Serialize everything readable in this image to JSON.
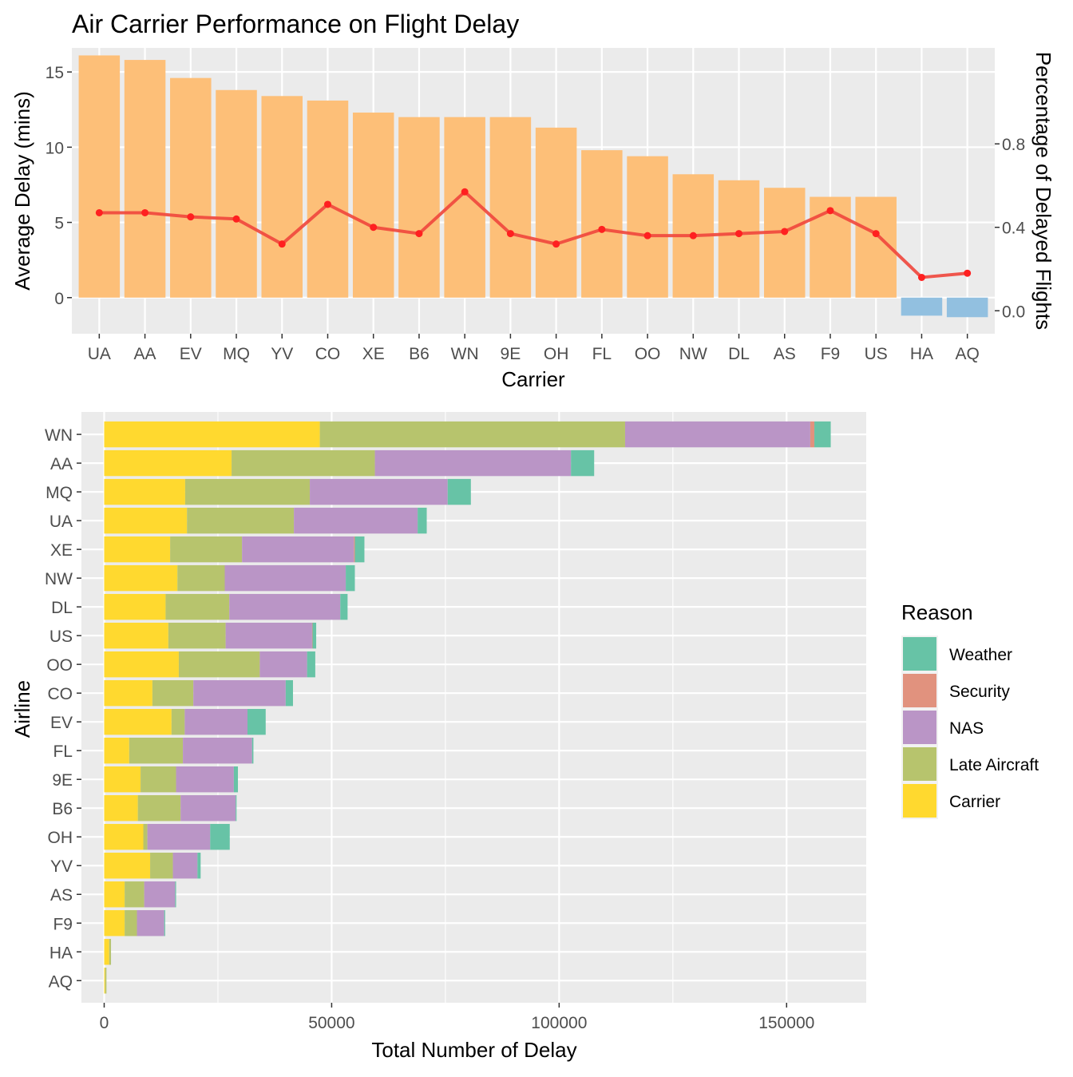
{
  "title": "Air Carrier Performance on Flight Delay",
  "colors": {
    "panel_bg": "#EBEBEB",
    "grid": "#FFFFFF",
    "bar_positive": "#FDBF78",
    "bar_negative": "#92C0E0",
    "line": "#F0463C",
    "point": "#FF2020",
    "axis_text": "#4D4D4D"
  },
  "chart_data": [
    {
      "type": "bar",
      "xlabel": "Carrier",
      "ylabel": "Average Delay (mins)",
      "y2label": "Percentage of Delayed Flights",
      "ylim": [
        -2.4,
        16.6
      ],
      "yticks": [
        0,
        5,
        10,
        15
      ],
      "y2lim": [
        -0.11,
        1.26
      ],
      "y2ticks": [
        0.0,
        0.4,
        0.8
      ],
      "y2ticklabels": [
        "0.0",
        "0.4",
        "0.8"
      ],
      "categories": [
        "UA",
        "AA",
        "EV",
        "MQ",
        "YV",
        "CO",
        "XE",
        "B6",
        "WN",
        "9E",
        "OH",
        "FL",
        "OO",
        "NW",
        "DL",
        "AS",
        "F9",
        "US",
        "HA",
        "AQ"
      ],
      "values": [
        16.1,
        15.8,
        14.6,
        13.8,
        13.4,
        13.1,
        12.3,
        12.0,
        12.0,
        12.0,
        11.3,
        9.8,
        9.4,
        8.2,
        7.8,
        7.3,
        6.7,
        6.7,
        -1.2,
        -1.3
      ],
      "line_series": {
        "axis": "secondary",
        "values": [
          0.47,
          0.47,
          0.45,
          0.44,
          0.32,
          0.51,
          0.4,
          0.37,
          0.57,
          0.37,
          0.32,
          0.39,
          0.36,
          0.36,
          0.37,
          0.38,
          0.48,
          0.37,
          0.16,
          0.18
        ]
      },
      "grid": true
    },
    {
      "type": "bar",
      "orientation": "horizontal",
      "stacked": true,
      "xlabel": "Total Number of Delay",
      "ylabel": "Airline",
      "xlim": [
        -5000,
        167500
      ],
      "xticks": [
        0,
        50000,
        100000,
        150000
      ],
      "xticklabels": [
        "0",
        "50000",
        "100000",
        "150000"
      ],
      "grid": true,
      "legend": {
        "title": "Reason",
        "position": "right",
        "entries": [
          "Weather",
          "Security",
          "NAS",
          "Late Aircraft",
          "Carrier"
        ]
      },
      "categories": [
        "WN",
        "AA",
        "MQ",
        "UA",
        "XE",
        "NW",
        "DL",
        "US",
        "OO",
        "CO",
        "EV",
        "FL",
        "9E",
        "B6",
        "OH",
        "YV",
        "AS",
        "F9",
        "HA",
        "AQ"
      ],
      "series": [
        {
          "name": "Carrier",
          "color": "#FFD92F",
          "values": [
            47400,
            28000,
            17800,
            18200,
            14500,
            16100,
            13500,
            14100,
            16400,
            10600,
            14800,
            5500,
            8000,
            7400,
            8600,
            10100,
            4500,
            4500,
            1100,
            200
          ]
        },
        {
          "name": "Late Aircraft",
          "color": "#B7C46D",
          "values": [
            67100,
            31500,
            27400,
            23500,
            15800,
            10400,
            14000,
            12600,
            17800,
            9000,
            2900,
            11800,
            7800,
            9400,
            900,
            5000,
            4300,
            2700,
            400,
            300
          ]
        },
        {
          "name": "NAS",
          "color": "#BA95C6",
          "values": [
            40700,
            43100,
            30300,
            27200,
            24600,
            26600,
            24400,
            19000,
            10400,
            20300,
            13800,
            15200,
            12700,
            12100,
            13800,
            5400,
            6800,
            6000,
            0,
            0
          ]
        },
        {
          "name": "Security",
          "color": "#E1927E",
          "values": [
            900,
            0,
            0,
            0,
            200,
            0,
            0,
            100,
            0,
            0,
            0,
            0,
            0,
            0,
            0,
            0,
            0,
            0,
            0,
            0
          ]
        },
        {
          "name": "Weather",
          "color": "#67C3A6",
          "values": [
            3600,
            5100,
            5100,
            2000,
            2100,
            2000,
            1600,
            800,
            1800,
            1600,
            4000,
            300,
            900,
            200,
            4300,
            700,
            200,
            200,
            0,
            0
          ]
        }
      ]
    }
  ]
}
